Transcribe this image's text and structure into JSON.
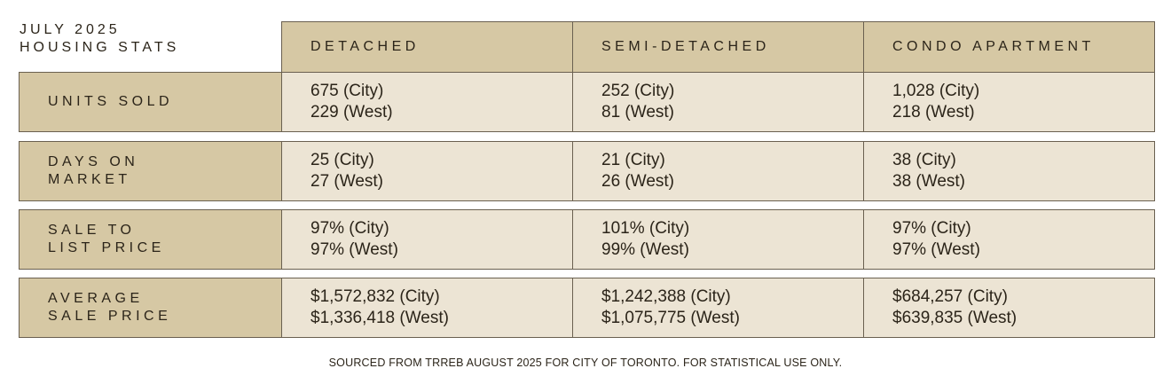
{
  "title": {
    "line1": "JULY 2025",
    "line2": "HOUSING STATS"
  },
  "columns": [
    "DETACHED",
    "SEMI-DETACHED",
    "CONDO APARTMENT"
  ],
  "rows": [
    {
      "label": [
        "UNITS SOLD",
        ""
      ],
      "cells": [
        [
          "675 (City)",
          "229 (West)"
        ],
        [
          "252 (City)",
          "81 (West)"
        ],
        [
          "1,028 (City)",
          "218 (West)"
        ]
      ]
    },
    {
      "label": [
        "DAYS ON",
        "MARKET"
      ],
      "cells": [
        [
          "25 (City)",
          "27 (West)"
        ],
        [
          "21 (City)",
          "26 (West)"
        ],
        [
          "38 (City)",
          "38 (West)"
        ]
      ]
    },
    {
      "label": [
        "SALE TO",
        "LIST PRICE"
      ],
      "cells": [
        [
          "97% (City)",
          "97% (West)"
        ],
        [
          "101% (City)",
          "99% (West)"
        ],
        [
          "97% (City)",
          "97% (West)"
        ]
      ]
    },
    {
      "label": [
        "AVERAGE",
        "SALE PRICE"
      ],
      "cells": [
        [
          "$1,572,832 (City)",
          "$1,336,418 (West)"
        ],
        [
          "$1,242,388 (City)",
          "$1,075,775 (West)"
        ],
        [
          "$684,257 (City)",
          "$639,835 (West)"
        ]
      ]
    }
  ],
  "footer": "SOURCED FROM TRREB AUGUST 2025 FOR CITY OF TORONTO. FOR STATISTICAL USE ONLY.",
  "colors": {
    "header_bg": "#d6c8a4",
    "cell_bg": "#ece4d4",
    "border": "#6a6050",
    "text": "#2b2419"
  }
}
